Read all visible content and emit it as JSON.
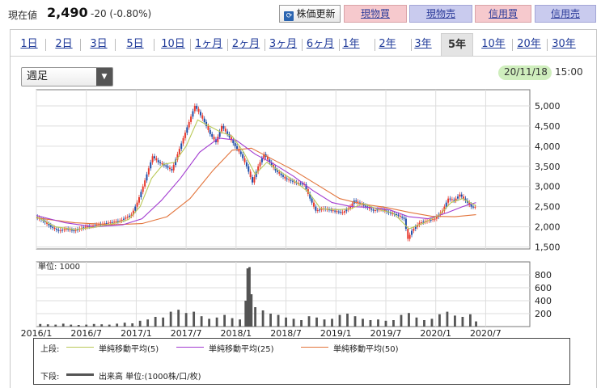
{
  "header": {
    "price_label": "現在値",
    "price_value": "2,490",
    "price_change": "-20 (-0.80%)",
    "refresh_label": "株価更新",
    "buttons": {
      "genbutsu_buy": "現物買",
      "genbutsu_sell": "現物売",
      "shinyo_buy": "信用買",
      "shinyo_sell": "信用売"
    }
  },
  "tabs": [
    "1日",
    "2日",
    "3日",
    "5日",
    "10日",
    "1ヶ月",
    "2ヶ月",
    "3ヶ月",
    "6ヶ月",
    "1年",
    "2年",
    "3年",
    "5年",
    "10年",
    "20年",
    "30年"
  ],
  "active_tab": "5年",
  "period_select": {
    "value": "週足"
  },
  "timestamp": {
    "date": "20/11/18",
    "time": "15:00"
  },
  "volume_unit_label": "単位: 1000",
  "legend": {
    "upper_label": "上段:",
    "lower_label": "下段:",
    "ma5": "単純移動平均(5)",
    "ma25": "単純移動平均(25)",
    "ma50": "単純移動平均(50)",
    "volume": "出来高 単位:(1000株/口/枚)"
  },
  "colors": {
    "up": "#e83a2f",
    "down": "#1f4da8",
    "ma5": "#b9c957",
    "ma25": "#a23ad0",
    "ma50": "#e2733a",
    "volume": "#555555",
    "accent_pink": "#f6c9cd",
    "accent_blue": "#c9cbee"
  },
  "chart_data": {
    "type": "line",
    "price_axis": {
      "ticks": [
        1500,
        2000,
        2500,
        3000,
        3500,
        4000,
        4500,
        5000
      ],
      "tick_labels": [
        "1,500",
        "2,000",
        "2,500",
        "3,000",
        "3,500",
        "4,000",
        "4,500",
        "5,000"
      ],
      "ylim": [
        1450,
        5400
      ]
    },
    "volume_axis": {
      "ticks": [
        200,
        400,
        600,
        800
      ],
      "ylim": [
        0,
        1000
      ]
    },
    "x_tick_labels": [
      "2016/1",
      "2016/7",
      "2017/1",
      "2017/7",
      "2018/1",
      "2018/7",
      "2019/1",
      "2019/7",
      "2020/1",
      "2020/7"
    ],
    "x_range_weeks": [
      0,
      257
    ],
    "close_points": [
      [
        0,
        2250
      ],
      [
        4,
        2150
      ],
      [
        8,
        2000
      ],
      [
        12,
        1900
      ],
      [
        16,
        1950
      ],
      [
        20,
        1900
      ],
      [
        26,
        2000
      ],
      [
        32,
        2050
      ],
      [
        38,
        2100
      ],
      [
        44,
        2150
      ],
      [
        50,
        2300
      ],
      [
        53,
        2600
      ],
      [
        56,
        3000
      ],
      [
        58,
        3300
      ],
      [
        61,
        3750
      ],
      [
        64,
        3600
      ],
      [
        68,
        3500
      ],
      [
        71,
        3400
      ],
      [
        74,
        3800
      ],
      [
        77,
        4200
      ],
      [
        80,
        4600
      ],
      [
        83,
        5000
      ],
      [
        85,
        4850
      ],
      [
        88,
        4600
      ],
      [
        91,
        4300
      ],
      [
        94,
        4100
      ],
      [
        97,
        4500
      ],
      [
        100,
        4300
      ],
      [
        104,
        4000
      ],
      [
        107,
        3800
      ],
      [
        110,
        3500
      ],
      [
        113,
        3100
      ],
      [
        116,
        3500
      ],
      [
        119,
        3800
      ],
      [
        122,
        3600
      ],
      [
        125,
        3400
      ],
      [
        130,
        3200
      ],
      [
        135,
        3100
      ],
      [
        140,
        3050
      ],
      [
        143,
        2700
      ],
      [
        146,
        2400
      ],
      [
        150,
        2450
      ],
      [
        155,
        2400
      ],
      [
        160,
        2350
      ],
      [
        164,
        2500
      ],
      [
        166,
        2650
      ],
      [
        168,
        2600
      ],
      [
        172,
        2500
      ],
      [
        176,
        2400
      ],
      [
        180,
        2450
      ],
      [
        184,
        2350
      ],
      [
        188,
        2300
      ],
      [
        192,
        2200
      ],
      [
        194,
        1700
      ],
      [
        196,
        1900
      ],
      [
        200,
        2100
      ],
      [
        204,
        2150
      ],
      [
        208,
        2200
      ],
      [
        212,
        2400
      ],
      [
        215,
        2700
      ],
      [
        218,
        2650
      ],
      [
        221,
        2800
      ],
      [
        224,
        2650
      ],
      [
        227,
        2500
      ],
      [
        229,
        2490
      ]
    ],
    "ma5": [
      [
        0,
        2250
      ],
      [
        10,
        2000
      ],
      [
        20,
        1930
      ],
      [
        30,
        1990
      ],
      [
        40,
        2080
      ],
      [
        48,
        2180
      ],
      [
        54,
        2500
      ],
      [
        60,
        3200
      ],
      [
        66,
        3550
      ],
      [
        72,
        3600
      ],
      [
        78,
        4000
      ],
      [
        84,
        4650
      ],
      [
        90,
        4500
      ],
      [
        96,
        4350
      ],
      [
        102,
        4250
      ],
      [
        108,
        3850
      ],
      [
        114,
        3300
      ],
      [
        120,
        3600
      ],
      [
        126,
        3400
      ],
      [
        134,
        3150
      ],
      [
        142,
        2850
      ],
      [
        148,
        2450
      ],
      [
        156,
        2420
      ],
      [
        164,
        2450
      ],
      [
        170,
        2580
      ],
      [
        178,
        2430
      ],
      [
        186,
        2340
      ],
      [
        194,
        1950
      ],
      [
        202,
        2100
      ],
      [
        210,
        2300
      ],
      [
        216,
        2600
      ],
      [
        222,
        2700
      ],
      [
        229,
        2520
      ]
    ],
    "ma25": [
      [
        0,
        2280
      ],
      [
        15,
        2100
      ],
      [
        30,
        2000
      ],
      [
        45,
        2050
      ],
      [
        55,
        2200
      ],
      [
        65,
        2650
      ],
      [
        75,
        3200
      ],
      [
        85,
        3850
      ],
      [
        95,
        4200
      ],
      [
        104,
        4150
      ],
      [
        114,
        3800
      ],
      [
        124,
        3550
      ],
      [
        134,
        3250
      ],
      [
        144,
        2900
      ],
      [
        154,
        2600
      ],
      [
        164,
        2500
      ],
      [
        174,
        2480
      ],
      [
        184,
        2420
      ],
      [
        194,
        2250
      ],
      [
        204,
        2200
      ],
      [
        214,
        2350
      ],
      [
        222,
        2500
      ],
      [
        229,
        2600
      ]
    ],
    "ma50": [
      [
        0,
        2220
      ],
      [
        20,
        2100
      ],
      [
        40,
        2050
      ],
      [
        55,
        2080
      ],
      [
        68,
        2250
      ],
      [
        80,
        2700
      ],
      [
        92,
        3400
      ],
      [
        102,
        3900
      ],
      [
        112,
        3950
      ],
      [
        122,
        3700
      ],
      [
        134,
        3400
      ],
      [
        146,
        3050
      ],
      [
        158,
        2700
      ],
      [
        170,
        2560
      ],
      [
        182,
        2480
      ],
      [
        194,
        2360
      ],
      [
        206,
        2260
      ],
      [
        218,
        2250
      ],
      [
        229,
        2300
      ]
    ],
    "volume_bars": [
      [
        2,
        40
      ],
      [
        6,
        35
      ],
      [
        10,
        30
      ],
      [
        14,
        45
      ],
      [
        18,
        30
      ],
      [
        22,
        25
      ],
      [
        26,
        30
      ],
      [
        30,
        40
      ],
      [
        34,
        35
      ],
      [
        38,
        30
      ],
      [
        42,
        45
      ],
      [
        46,
        60
      ],
      [
        50,
        50
      ],
      [
        54,
        90
      ],
      [
        58,
        110
      ],
      [
        62,
        150
      ],
      [
        66,
        140
      ],
      [
        70,
        230
      ],
      [
        74,
        260
      ],
      [
        78,
        210
      ],
      [
        82,
        230
      ],
      [
        86,
        160
      ],
      [
        90,
        120
      ],
      [
        94,
        140
      ],
      [
        98,
        180
      ],
      [
        102,
        130
      ],
      [
        106,
        110
      ],
      [
        109,
        400
      ],
      [
        110,
        900
      ],
      [
        111,
        920
      ],
      [
        112,
        500
      ],
      [
        114,
        300
      ],
      [
        118,
        250
      ],
      [
        122,
        200
      ],
      [
        126,
        180
      ],
      [
        130,
        140
      ],
      [
        134,
        120
      ],
      [
        138,
        100
      ],
      [
        142,
        160
      ],
      [
        146,
        140
      ],
      [
        150,
        110
      ],
      [
        154,
        120
      ],
      [
        158,
        180
      ],
      [
        162,
        200
      ],
      [
        166,
        160
      ],
      [
        170,
        120
      ],
      [
        174,
        100
      ],
      [
        178,
        110
      ],
      [
        182,
        90
      ],
      [
        186,
        100
      ],
      [
        190,
        180
      ],
      [
        194,
        210
      ],
      [
        198,
        140
      ],
      [
        202,
        100
      ],
      [
        206,
        120
      ],
      [
        210,
        190
      ],
      [
        214,
        230
      ],
      [
        218,
        170
      ],
      [
        222,
        150
      ],
      [
        226,
        190
      ],
      [
        229,
        80
      ]
    ]
  }
}
